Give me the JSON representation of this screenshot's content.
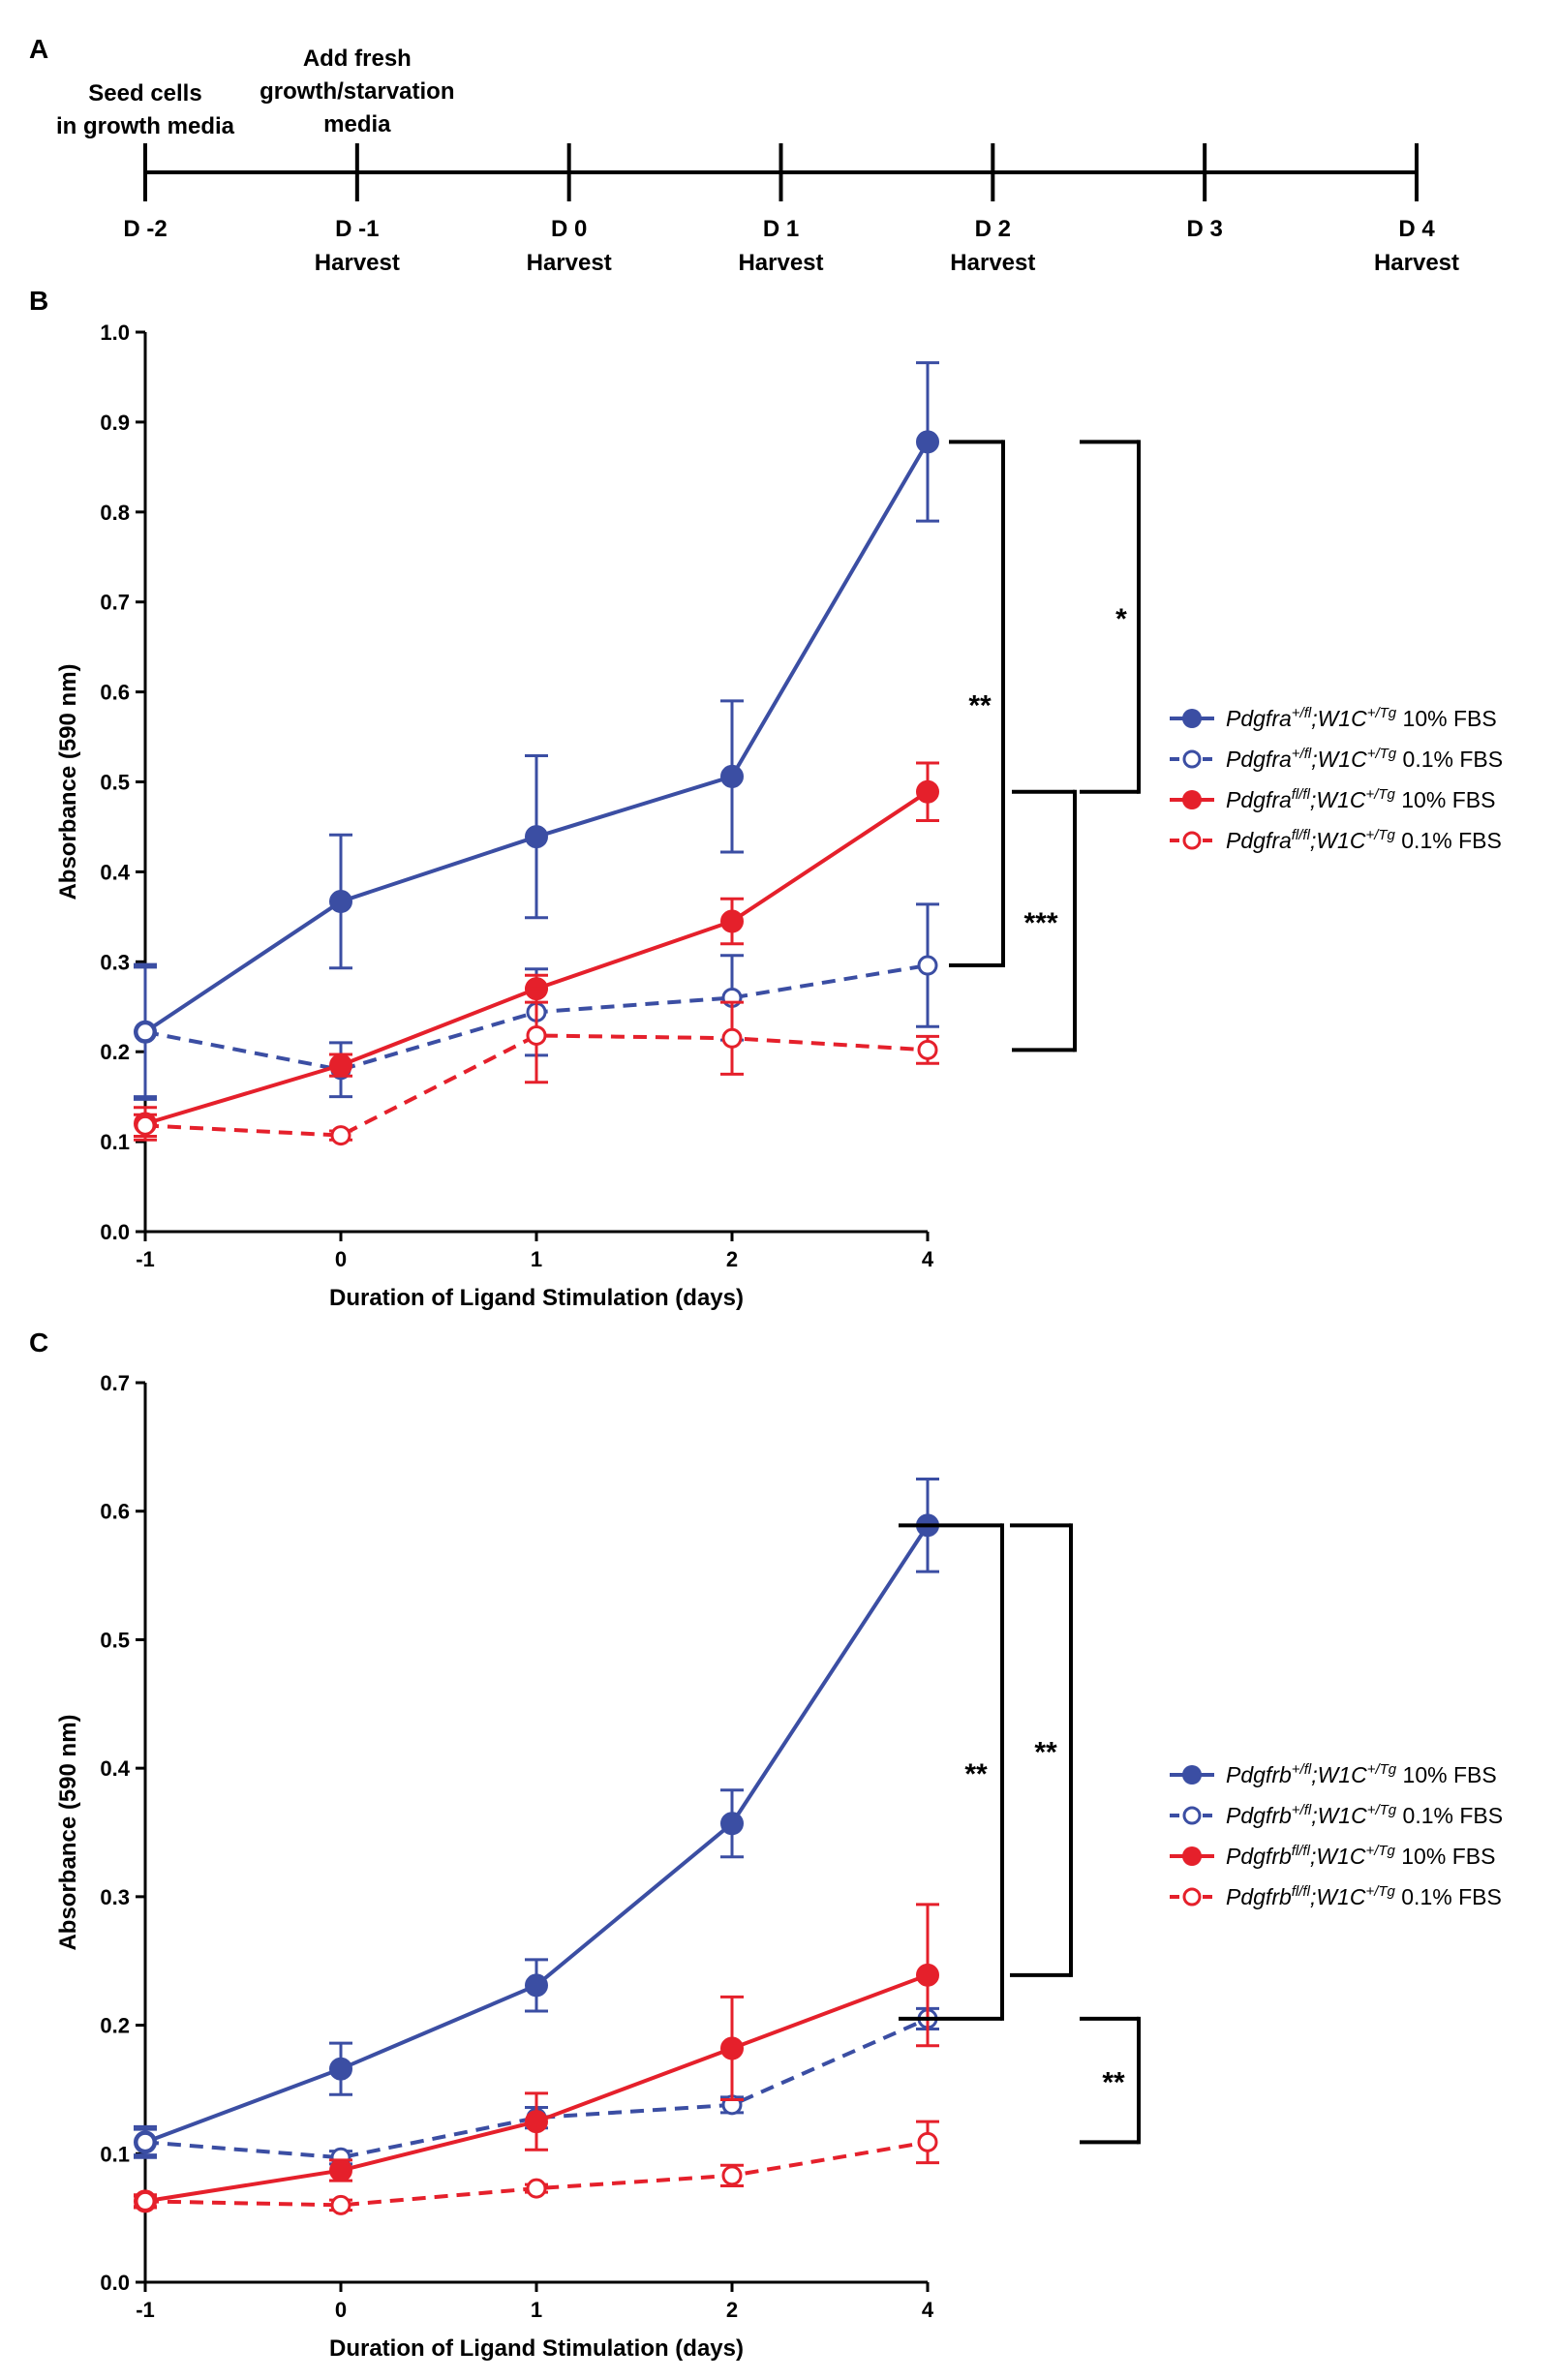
{
  "colors": {
    "blue": "#3b4ea3",
    "red": "#e5202b",
    "black": "#000000"
  },
  "panel_a": {
    "panel_label": "A",
    "top_notes": [
      {
        "lines": [
          "Seed cells",
          "in growth media"
        ]
      },
      {
        "lines": [
          "Add fresh",
          "growth/starvation",
          "media"
        ]
      }
    ],
    "days": [
      "D -2",
      "D -1",
      "D 0",
      "D 1",
      "D 2",
      "D 3",
      "D 4"
    ],
    "harvest": [
      false,
      true,
      true,
      true,
      true,
      false,
      true
    ],
    "harvest_label": "Harvest"
  },
  "chart_data": [
    {
      "panel_label": "B",
      "type": "line",
      "categories": [
        "-1",
        "0",
        "1",
        "2",
        "4"
      ],
      "xlabel": "Duration of Ligand Stimulation (days)",
      "ylabel": "Absorbance (590 nm)",
      "ylim": [
        0,
        1.0
      ],
      "yticks": [
        "0.0",
        "0.1",
        "0.2",
        "0.3",
        "0.4",
        "0.5",
        "0.6",
        "0.7",
        "0.8",
        "0.9",
        "1.0"
      ],
      "series": [
        {
          "gene": "Pdgfra",
          "sup1": "+/fl",
          "mid": ";W1C",
          "sup2": "+/Tg",
          "suffix": " 10% FBS",
          "color": "blue",
          "style": "solid",
          "marker": "filled",
          "values": [
            0.222,
            0.367,
            0.439,
            0.506,
            0.878
          ],
          "err": [
            0.075,
            0.074,
            0.09,
            0.084,
            0.088
          ]
        },
        {
          "gene": "Pdgfra",
          "sup1": "+/fl",
          "mid": ";W1C",
          "sup2": "+/Tg",
          "suffix": " 0.1% FBS",
          "color": "blue",
          "style": "dashed",
          "marker": "open",
          "values": [
            0.222,
            0.18,
            0.244,
            0.26,
            0.296
          ],
          "err": [
            0.072,
            0.03,
            0.048,
            0.047,
            0.068
          ]
        },
        {
          "gene": "Pdgfra",
          "sup1": "fl/fl",
          "mid": ";W1C",
          "sup2": "+/Tg",
          "suffix": " 10% FBS",
          "color": "red",
          "style": "solid",
          "marker": "filled",
          "values": [
            0.12,
            0.185,
            0.27,
            0.345,
            0.489
          ],
          "err": [
            0.018,
            0.012,
            0.015,
            0.025,
            0.032
          ]
        },
        {
          "gene": "Pdgfra",
          "sup1": "fl/fl",
          "mid": ";W1C",
          "sup2": "+/Tg",
          "suffix": " 0.1% FBS",
          "color": "red",
          "style": "dashed",
          "marker": "open",
          "values": [
            0.118,
            0.107,
            0.218,
            0.215,
            0.202
          ],
          "err": [
            0.012,
            0.005,
            0.052,
            0.04,
            0.015
          ]
        }
      ],
      "significance": [
        {
          "label": "**",
          "y_top": 0.878,
          "y_bottom": 0.296
        },
        {
          "label": "*",
          "y_top": 0.878,
          "y_bottom": 0.489
        },
        {
          "label": "***",
          "y_top": 0.489,
          "y_bottom": 0.202
        }
      ]
    },
    {
      "panel_label": "C",
      "type": "line",
      "categories": [
        "-1",
        "0",
        "1",
        "2",
        "4"
      ],
      "xlabel": "Duration of Ligand Stimulation (days)",
      "ylabel": "Absorbance (590 nm)",
      "ylim": [
        0,
        0.7
      ],
      "yticks": [
        "0.0",
        "0.1",
        "0.2",
        "0.3",
        "0.4",
        "0.5",
        "0.6",
        "0.7"
      ],
      "series": [
        {
          "gene": "Pdgfrb",
          "sup1": "+/fl",
          "mid": ";W1C",
          "sup2": "+/Tg",
          "suffix": " 10% FBS",
          "color": "blue",
          "style": "solid",
          "marker": "filled",
          "values": [
            0.109,
            0.166,
            0.231,
            0.357,
            0.589
          ],
          "err": [
            0.01,
            0.02,
            0.02,
            0.026,
            0.036
          ]
        },
        {
          "gene": "Pdgfrb",
          "sup1": "+/fl",
          "mid": ";W1C",
          "sup2": "+/Tg",
          "suffix": " 0.1% FBS",
          "color": "blue",
          "style": "dashed",
          "marker": "open",
          "values": [
            0.109,
            0.097,
            0.128,
            0.138,
            0.205
          ],
          "err": [
            0.012,
            0.005,
            0.008,
            0.006,
            0.008
          ]
        },
        {
          "gene": "Pdgfrb",
          "sup1": "fl/fl",
          "mid": ";W1C",
          "sup2": "+/Tg",
          "suffix": " 10% FBS",
          "color": "red",
          "style": "solid",
          "marker": "filled",
          "values": [
            0.063,
            0.087,
            0.125,
            0.182,
            0.239
          ],
          "err": [
            0.005,
            0.008,
            0.022,
            0.04,
            0.055
          ]
        },
        {
          "gene": "Pdgfrb",
          "sup1": "fl/fl",
          "mid": ";W1C",
          "sup2": "+/Tg",
          "suffix": " 0.1% FBS",
          "color": "red",
          "style": "dashed",
          "marker": "open",
          "values": [
            0.063,
            0.06,
            0.073,
            0.083,
            0.109
          ],
          "err": [
            0.004,
            0.004,
            0.003,
            0.008,
            0.016
          ]
        }
      ],
      "significance": [
        {
          "label": "**",
          "y_top": 0.589,
          "y_bottom": 0.205
        },
        {
          "label": "**",
          "y_top": 0.589,
          "y_bottom": 0.239
        },
        {
          "label": "**",
          "y_top": 0.205,
          "y_bottom": 0.109
        }
      ]
    }
  ]
}
